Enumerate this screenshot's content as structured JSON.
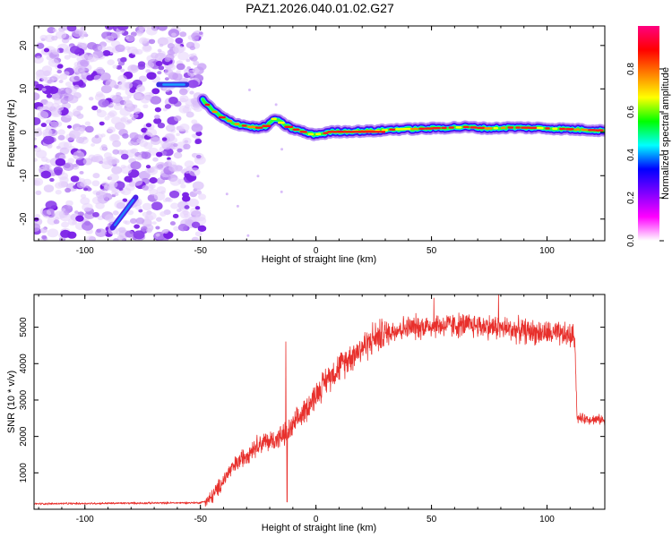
{
  "title": "PAZ1.2026.040.01.02.G27",
  "chart_data": [
    {
      "type": "heatmap",
      "name": "spectrogram",
      "xlabel": "Height of straight line (km)",
      "ylabel": "Frequency (Hz)",
      "xlim": [
        -122,
        125
      ],
      "ylim": [
        -25,
        24.5
      ],
      "xticks": [
        -100,
        -50,
        0,
        50,
        100
      ],
      "yticks": [
        -20,
        -10,
        0,
        10,
        20
      ],
      "xtick_labels": [
        "-100",
        "-50",
        "0",
        "50",
        "100"
      ],
      "ytick_labels": [
        "-20",
        "-10",
        "0",
        "10",
        "20"
      ],
      "noise_region_x": [
        -122,
        -49
      ],
      "ridge": [
        {
          "x": -49,
          "y": 7.5
        },
        {
          "x": -45,
          "y": 5.2
        },
        {
          "x": -40,
          "y": 3.2
        },
        {
          "x": -35,
          "y": 2.0
        },
        {
          "x": -30,
          "y": 1.4
        },
        {
          "x": -25,
          "y": 1.0
        },
        {
          "x": -21,
          "y": 1.5
        },
        {
          "x": -18,
          "y": 3.2
        },
        {
          "x": -15,
          "y": 2.2
        },
        {
          "x": -11,
          "y": 1.0
        },
        {
          "x": -6,
          "y": 0.2
        },
        {
          "x": -2,
          "y": -0.5
        },
        {
          "x": 2,
          "y": -0.4
        },
        {
          "x": 7,
          "y": 0.1
        },
        {
          "x": 15,
          "y": 0.2
        },
        {
          "x": 25,
          "y": 0.3
        },
        {
          "x": 35,
          "y": 0.7
        },
        {
          "x": 45,
          "y": 0.8
        },
        {
          "x": 55,
          "y": 1.0
        },
        {
          "x": 65,
          "y": 1.2
        },
        {
          "x": 75,
          "y": 0.9
        },
        {
          "x": 85,
          "y": 1.1
        },
        {
          "x": 95,
          "y": 1.0
        },
        {
          "x": 105,
          "y": 0.8
        },
        {
          "x": 115,
          "y": 0.6
        },
        {
          "x": 125,
          "y": 0.4
        }
      ],
      "side_features": [
        {
          "label": "horizontal streak",
          "x": [
            -68,
            -56
          ],
          "y": 11
        },
        {
          "label": "diagonal streak",
          "x": [
            -88,
            -78
          ],
          "y": [
            -22,
            -15
          ]
        }
      ],
      "colorbar": {
        "label": "Normalized spectral amplitude",
        "range": [
          0.0,
          1.0
        ],
        "ticks": [
          0.0,
          0.2,
          0.4,
          0.6,
          0.8
        ],
        "tick_labels": [
          "0.0",
          "0.2",
          "0.4",
          "0.6",
          "0.8"
        ],
        "colors": [
          "#ffffff",
          "#ff00ff",
          "#7f00ff",
          "#0000ff",
          "#00ffff",
          "#00ff00",
          "#ffff00",
          "#ff8000",
          "#ff0000",
          "#ff0080"
        ]
      }
    },
    {
      "type": "line",
      "name": "snr",
      "xlabel": "Height of straight line (km)",
      "ylabel": "SNR (10 * v/v)",
      "xlim": [
        -122,
        125
      ],
      "ylim": [
        0,
        5900
      ],
      "xticks": [
        -100,
        -50,
        0,
        50,
        100
      ],
      "yticks": [
        1000,
        2000,
        3000,
        4000,
        5000
      ],
      "xtick_labels": [
        "-100",
        "-50",
        "0",
        "50",
        "100"
      ],
      "ytick_labels": [
        "1000",
        "2000",
        "3000",
        "4000",
        "5000"
      ],
      "color": "#e8302c",
      "envelope": [
        {
          "x": -122,
          "y": 150
        },
        {
          "x": -50,
          "y": 180
        },
        {
          "x": -46,
          "y": 260
        },
        {
          "x": -42,
          "y": 600
        },
        {
          "x": -38,
          "y": 1000
        },
        {
          "x": -32,
          "y": 1400
        },
        {
          "x": -25,
          "y": 1800
        },
        {
          "x": -18,
          "y": 1900
        },
        {
          "x": -12,
          "y": 2100
        },
        {
          "x": -5,
          "y": 2700
        },
        {
          "x": 5,
          "y": 3600
        },
        {
          "x": 15,
          "y": 4200
        },
        {
          "x": 25,
          "y": 4700
        },
        {
          "x": 35,
          "y": 4950
        },
        {
          "x": 50,
          "y": 5050
        },
        {
          "x": 70,
          "y": 5050
        },
        {
          "x": 90,
          "y": 4900
        },
        {
          "x": 112,
          "y": 4750
        },
        {
          "x": 113,
          "y": 2500
        },
        {
          "x": 125,
          "y": 2450
        }
      ],
      "spikes": [
        {
          "x": -13,
          "y": 4600
        },
        {
          "x": -12.5,
          "y": 200
        },
        {
          "x": 51,
          "y": 5800
        },
        {
          "x": 79,
          "y": 5900
        }
      ]
    }
  ]
}
